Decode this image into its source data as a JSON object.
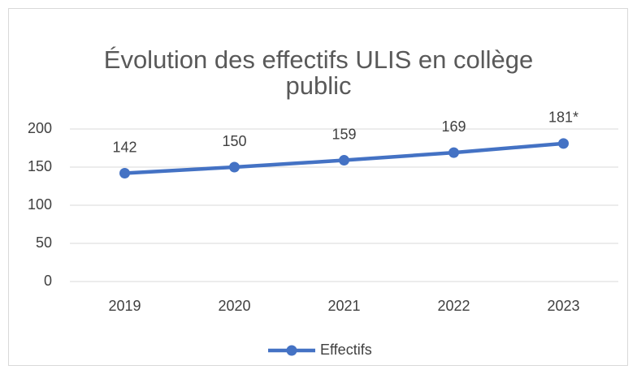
{
  "chart_data": {
    "type": "line",
    "title": "Évolution des effectifs ULIS en collège public",
    "categories": [
      "2019",
      "2020",
      "2021",
      "2022",
      "2023"
    ],
    "series": [
      {
        "name": "Effectifs",
        "color": "#4472c4",
        "values": [
          142,
          150,
          159,
          169,
          181
        ],
        "value_labels": [
          "142",
          "150",
          "159",
          "169",
          "181*"
        ]
      }
    ],
    "ylim": [
      0,
      200
    ],
    "yticks": [
      0,
      50,
      100,
      150,
      200
    ],
    "grid": true,
    "legend": "bottom"
  }
}
